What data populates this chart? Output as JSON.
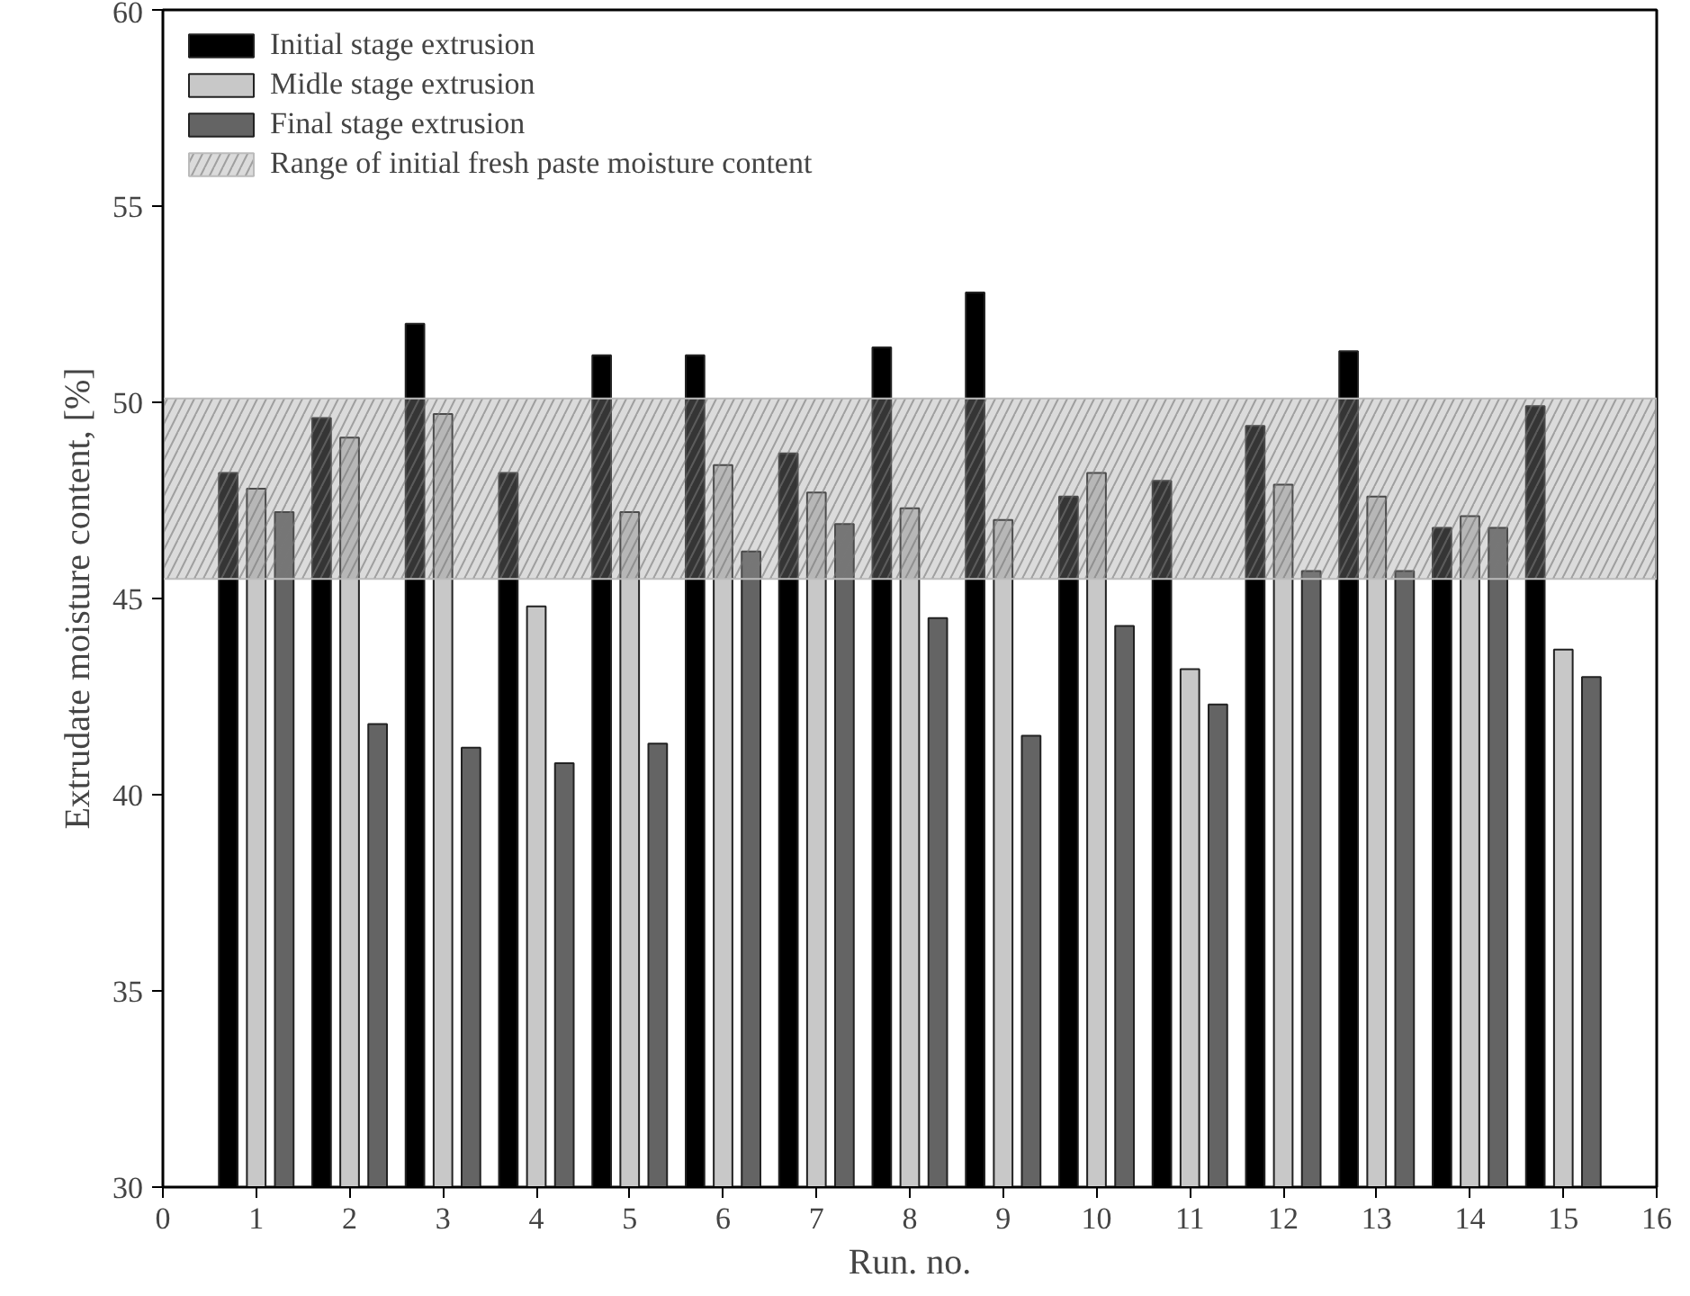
{
  "chart_data": {
    "type": "bar",
    "xlabel": "Run. no.",
    "ylabel": "Extrudate moisture content, [%]",
    "x": [
      1,
      2,
      3,
      4,
      5,
      6,
      7,
      8,
      9,
      10,
      11,
      12,
      13,
      14,
      15
    ],
    "series": [
      {
        "name": "Initial stage extrusion",
        "color": "#000000",
        "values": [
          48.2,
          49.6,
          52.0,
          48.2,
          51.2,
          51.2,
          48.7,
          51.4,
          52.8,
          47.6,
          48.0,
          49.4,
          51.3,
          46.8,
          49.9
        ]
      },
      {
        "name": "Midle stage extrusion",
        "color": "#c8c8c8",
        "values": [
          47.8,
          49.1,
          49.7,
          44.8,
          47.2,
          48.4,
          47.7,
          47.3,
          47.0,
          48.2,
          43.2,
          47.9,
          47.6,
          47.1,
          43.7
        ]
      },
      {
        "name": "Final stage extrusion",
        "color": "#646464",
        "values": [
          47.2,
          41.8,
          41.2,
          40.8,
          41.3,
          46.2,
          46.9,
          44.5,
          41.5,
          44.3,
          42.3,
          45.7,
          45.7,
          46.8,
          43.0
        ]
      }
    ],
    "xlim": [
      0,
      16
    ],
    "xticks": [
      0,
      1,
      2,
      3,
      4,
      5,
      6,
      7,
      8,
      9,
      10,
      11,
      12,
      13,
      14,
      15,
      16
    ],
    "ylim": [
      30,
      60
    ],
    "yticks": [
      30,
      35,
      40,
      45,
      50,
      55,
      60
    ],
    "bands": [
      {
        "axis": "y",
        "from": 45.5,
        "to": 50.1,
        "label": "Range of initial fresh paste moisture content",
        "color": "#999999"
      }
    ],
    "grid": false,
    "legend": "top left"
  }
}
